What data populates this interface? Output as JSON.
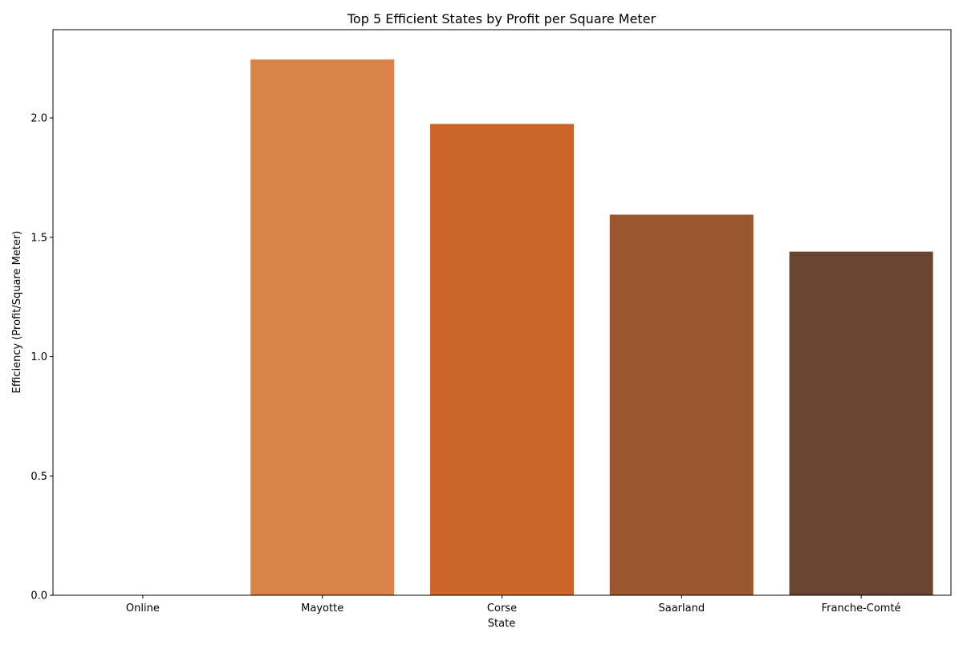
{
  "chart_data": {
    "type": "bar",
    "title": "Top 5 Efficient States by Profit per Square Meter",
    "xlabel": "State",
    "ylabel": "Efficiency (Profit/Square Meter)",
    "categories": [
      "Online",
      "Mayotte",
      "Corse",
      "Saarland",
      "Franche-Comté"
    ],
    "values": [
      0.0,
      2.245,
      1.975,
      1.595,
      1.44
    ],
    "colors": [
      "#f2a873",
      "#d9834b",
      "#cb6529",
      "#9a572e",
      "#684530"
    ],
    "ylim": [
      0,
      2.37
    ],
    "yticks": [
      0.0,
      0.5,
      1.0,
      1.5,
      2.0
    ],
    "yticklabels": [
      "0.0",
      "0.5",
      "1.0",
      "1.5",
      "2.0"
    ],
    "grid": false,
    "legend": "none"
  }
}
